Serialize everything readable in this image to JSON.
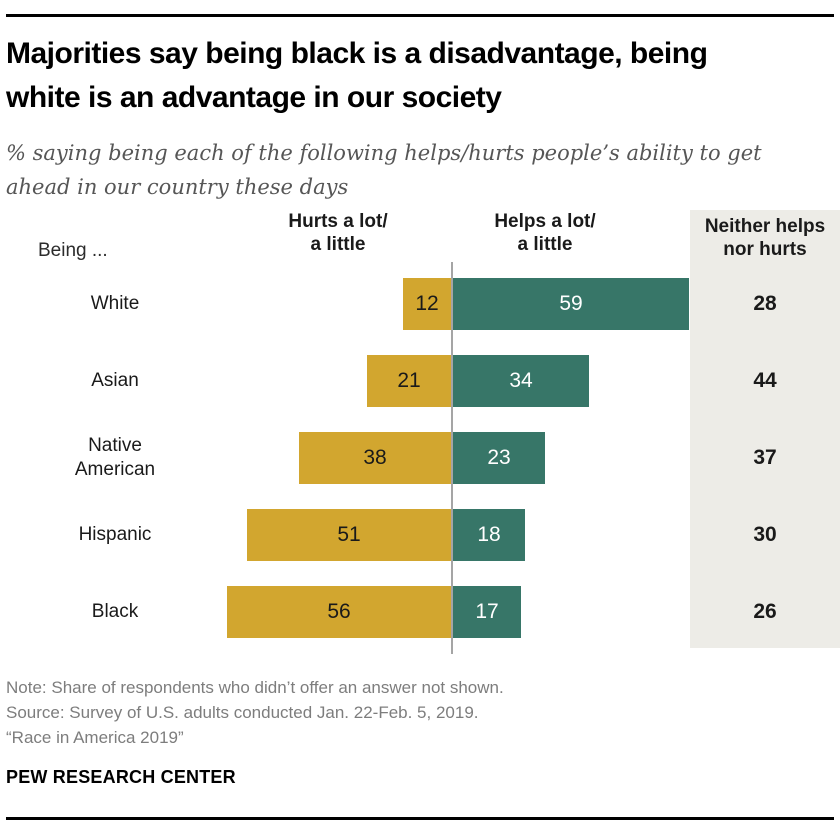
{
  "header": {
    "title_lines": [
      "Majorities say being black is a disadvantage, being",
      "white is an advantage in our society"
    ],
    "subtitle_lines": [
      "% saying being each of the following helps/hurts people’s ability to get",
      "ahead in our country these days"
    ]
  },
  "chart_data": {
    "type": "bar",
    "variant": "horizontal-diverging",
    "unit": "percent",
    "being_label": "Being ...",
    "headers": {
      "hurts_lines": [
        "Hurts a lot/",
        "a little"
      ],
      "helps_lines": [
        "Helps a lot/",
        "a little"
      ],
      "neither_lines": [
        "Neither helps",
        "nor hurts"
      ]
    },
    "categories": [
      "White",
      "Asian",
      "Native American",
      "Hispanic",
      "Black"
    ],
    "series": [
      {
        "name": "Hurts a lot/a little",
        "color": "#d2a62f",
        "values": [
          12,
          21,
          38,
          51,
          56
        ]
      },
      {
        "name": "Helps a lot/a little",
        "color": "#377668",
        "values": [
          59,
          34,
          23,
          18,
          17
        ]
      },
      {
        "name": "Neither helps nor hurts",
        "color": "#edece7",
        "values": [
          28,
          44,
          37,
          30,
          26
        ]
      }
    ],
    "colors": {
      "hurts_bar": "#d2a62f",
      "helps_bar": "#377668",
      "neither_panel_bg": "#edece7",
      "axis_line": "#a5a5a5"
    },
    "value_range_hint": [
      0,
      60
    ],
    "legend_position": "column-headers",
    "grid": false
  },
  "footer": {
    "note": "Note: Share of respondents who didn’t offer an answer not shown.",
    "source": "Source: Survey of U.S. adults conducted Jan. 22-Feb. 5, 2019.",
    "citation": "“Race in America 2019”",
    "wordmark": "PEW RESEARCH CENTER"
  }
}
